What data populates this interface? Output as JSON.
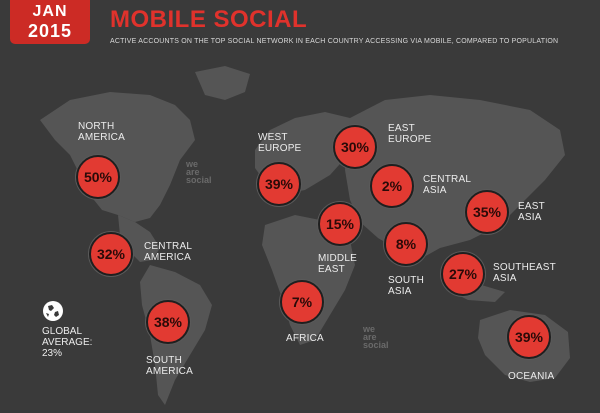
{
  "header": {
    "badge_month": "JAN",
    "badge_year": "2015",
    "title": "MOBILE SOCIAL",
    "subtitle": "ACTIVE ACCOUNTS ON THE TOP SOCIAL NETWORK IN EACH COUNTRY ACCESSING VIA MOBILE, COMPARED TO POPULATION"
  },
  "colors": {
    "background": "#3a3a3a",
    "land": "#555555",
    "accent_red": "#e23a32",
    "badge_red": "#cc2b25"
  },
  "watermark": "we\nare\nsocial",
  "global": {
    "icon": "globe-icon",
    "label_line1": "GLOBAL",
    "label_line2": "AVERAGE:",
    "value": "23%"
  },
  "regions": [
    {
      "id": "north-america",
      "label": "NORTH\nAMERICA",
      "value": "50%"
    },
    {
      "id": "central-america",
      "label": "CENTRAL\nAMERICA",
      "value": "32%"
    },
    {
      "id": "south-america",
      "label": "SOUTH\nAMERICA",
      "value": "38%"
    },
    {
      "id": "west-europe",
      "label": "WEST\nEUROPE",
      "value": "39%"
    },
    {
      "id": "east-europe",
      "label": "EAST\nEUROPE",
      "value": "30%"
    },
    {
      "id": "central-asia",
      "label": "CENTRAL\nASIA",
      "value": "2%"
    },
    {
      "id": "middle-east",
      "label": "MIDDLE\nEAST",
      "value": "15%"
    },
    {
      "id": "south-asia",
      "label": "SOUTH\nASIA",
      "value": "8%"
    },
    {
      "id": "east-asia",
      "label": "EAST\nASIA",
      "value": "35%"
    },
    {
      "id": "southeast-asia",
      "label": "SOUTHEAST\nASIA",
      "value": "27%"
    },
    {
      "id": "africa",
      "label": "AFRICA",
      "value": "7%"
    },
    {
      "id": "oceania",
      "label": "OCEANIA",
      "value": "39%"
    }
  ]
}
